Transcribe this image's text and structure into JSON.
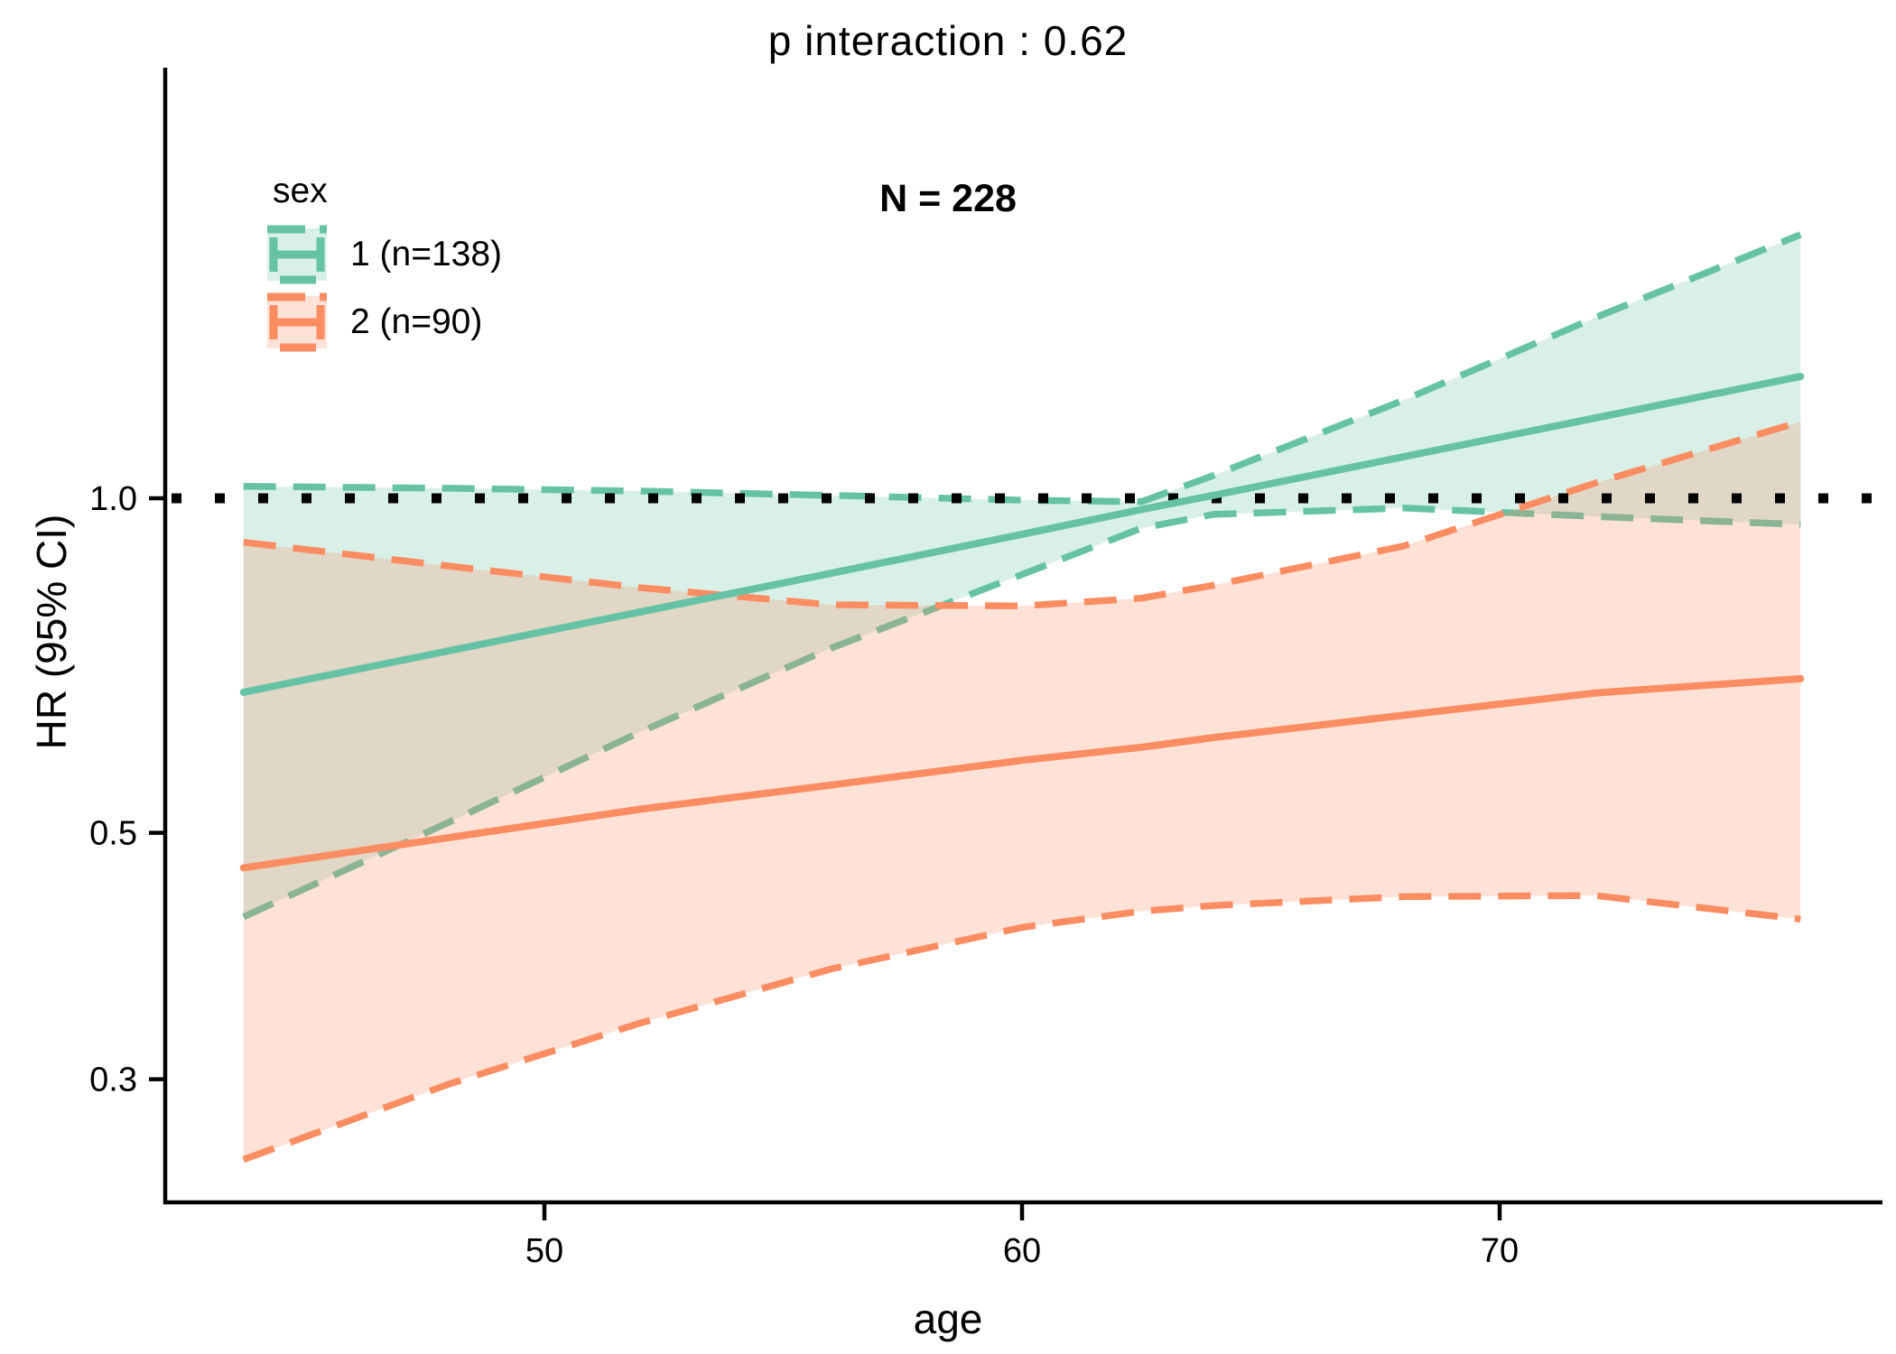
{
  "chart_data": {
    "type": "line",
    "title": "p interaction : 0.62",
    "annotation": "N = 228",
    "xlabel": "age",
    "ylabel": "HR (95% CI)",
    "y_scale": "log10",
    "x_ticks": [
      50,
      60,
      70
    ],
    "y_ticks": [
      1.0,
      0.5,
      0.3
    ],
    "y_tick_labels": [
      "1.0",
      "0.5",
      "0.3"
    ],
    "x_range": [
      43.7,
      76.3
    ],
    "reference_line_y": 1.0,
    "reference_color": "#000000",
    "legend_title": "sex",
    "ages": [
      43.7,
      48,
      52,
      56,
      60,
      62.5,
      64,
      68,
      72,
      76.3
    ],
    "series": [
      {
        "name": "1 (n=138)",
        "n": 138,
        "color": "#66C2A5",
        "fill": "rgba(102,194,165,0.25)",
        "hr": [
          0.669,
          0.729,
          0.79,
          0.856,
          0.928,
          0.977,
          1.006,
          1.09,
          1.181,
          1.287
        ],
        "upper": [
          1.025,
          1.021,
          1.015,
          1.006,
          0.996,
          0.993,
          1.048,
          1.226,
          1.454,
          1.727
        ],
        "lower": [
          0.42,
          0.511,
          0.616,
          0.733,
          0.854,
          0.94,
          0.967,
          0.98,
          0.963,
          0.947
        ]
      },
      {
        "name": "2 (n=90)",
        "n": 90,
        "color": "#FC8D62",
        "fill": "rgba(252,141,98,0.25)",
        "hr": [
          0.465,
          0.495,
          0.525,
          0.552,
          0.581,
          0.597,
          0.609,
          0.638,
          0.668,
          0.688
        ],
        "upper": [
          0.913,
          0.869,
          0.831,
          0.802,
          0.8,
          0.813,
          0.835,
          0.906,
          1.032,
          1.172
        ],
        "lower": [
          0.254,
          0.297,
          0.337,
          0.377,
          0.411,
          0.425,
          0.43,
          0.438,
          0.439,
          0.418
        ]
      }
    ]
  }
}
